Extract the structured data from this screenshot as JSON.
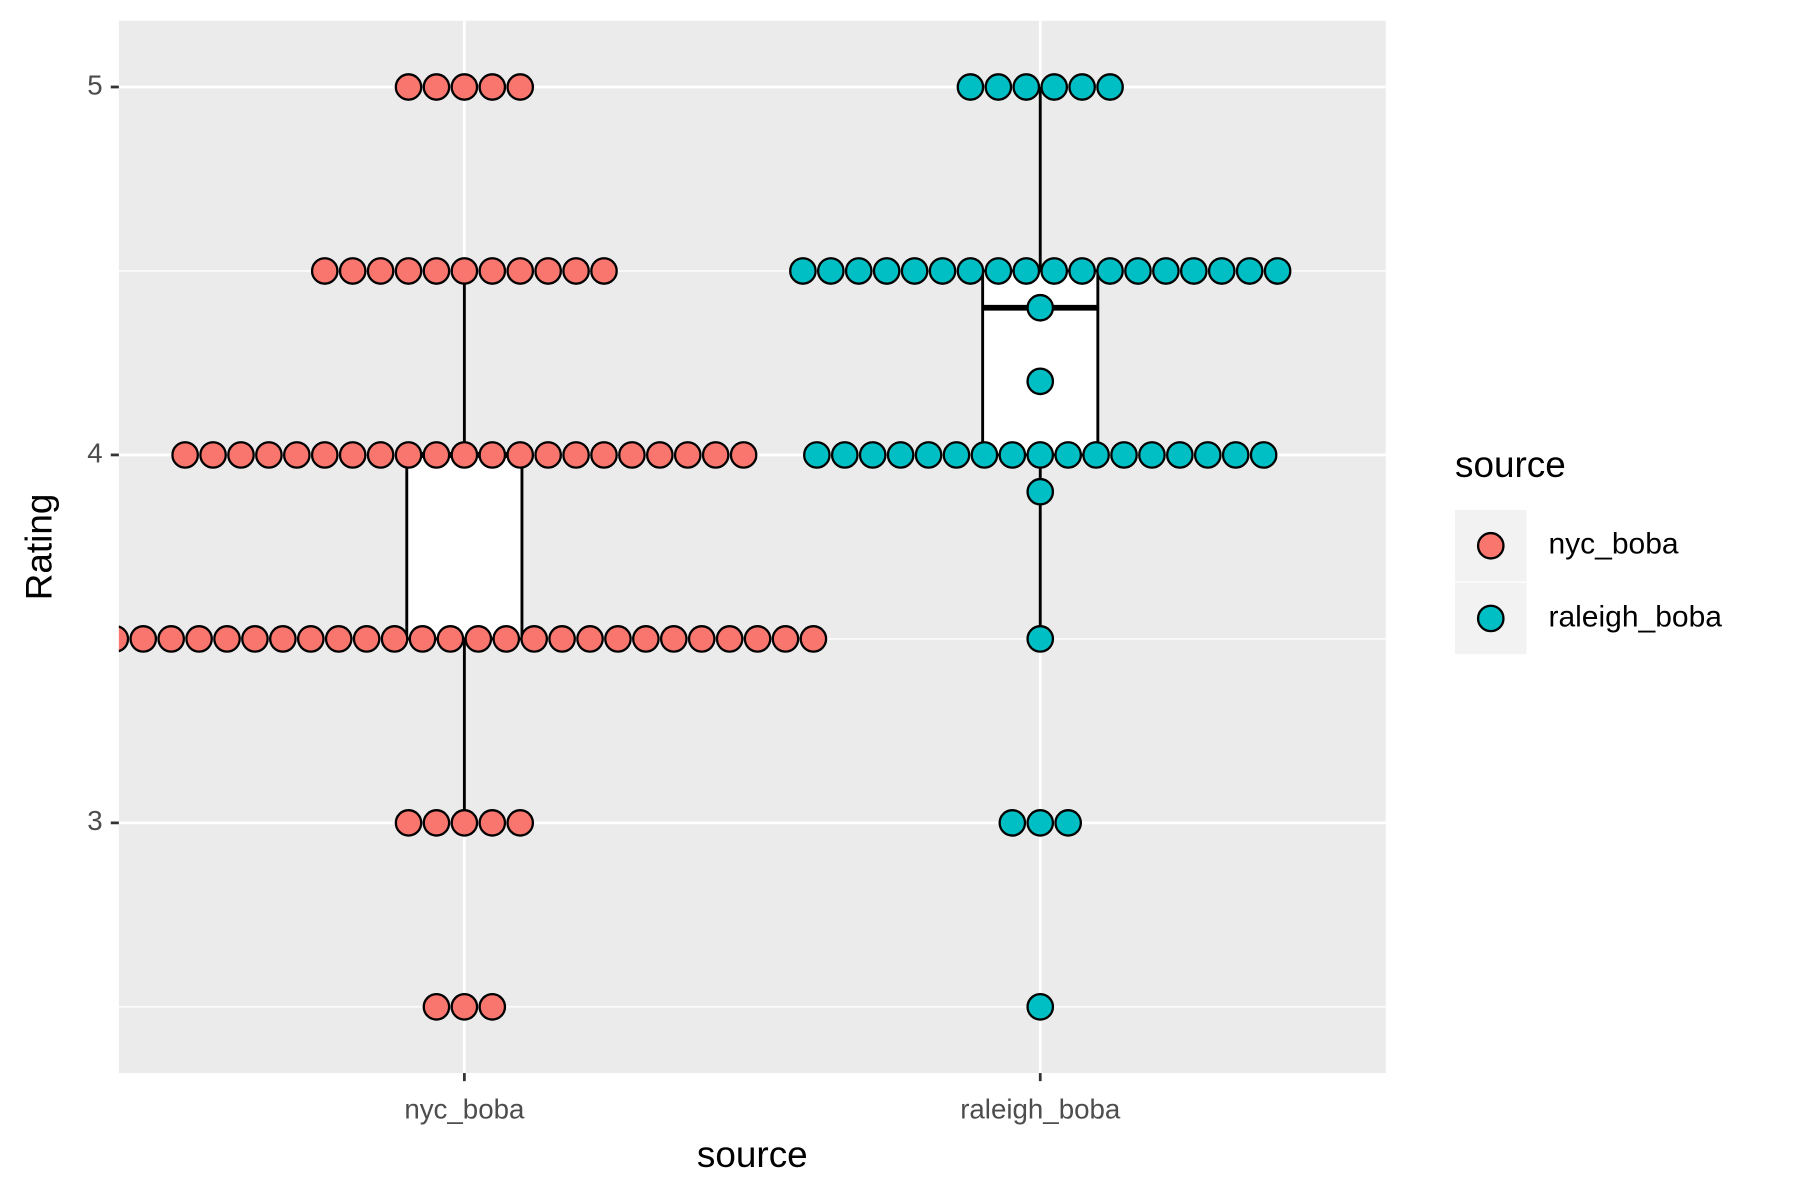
{
  "chart_data": {
    "type": "boxdot",
    "x_label": "source",
    "y_label": "Rating",
    "legend_title": "source",
    "categories": [
      "nyc_boba",
      "raleigh_boba"
    ],
    "ylim": [
      2.32,
      5.18
    ],
    "yticks": [
      3,
      4,
      5
    ],
    "yminor": [
      2.5,
      3.5,
      4.5
    ],
    "grid": true,
    "legend": "right",
    "series": [
      {
        "name": "nyc_boba",
        "color": "#f8766d",
        "box": {
          "lower": 3,
          "q1": 3.5,
          "median": 4,
          "q3": 4,
          "upper": 4.5
        },
        "dots": {
          "levels": [
            2.5,
            3,
            3.5,
            4,
            4.5,
            5
          ],
          "counts": [
            3,
            5,
            26,
            21,
            11,
            5
          ]
        }
      },
      {
        "name": "raleigh_boba",
        "color": "#00bfc4",
        "box": {
          "lower": 3.5,
          "q1": 4,
          "median": 4.4,
          "q3": 4.5,
          "upper": 5
        },
        "dots": {
          "levels": [
            2.5,
            3,
            3.5,
            3.9,
            4,
            4.2,
            4.4,
            4.5,
            5
          ],
          "counts": [
            1,
            3,
            1,
            1,
            17,
            1,
            1,
            18,
            6
          ]
        }
      }
    ]
  }
}
